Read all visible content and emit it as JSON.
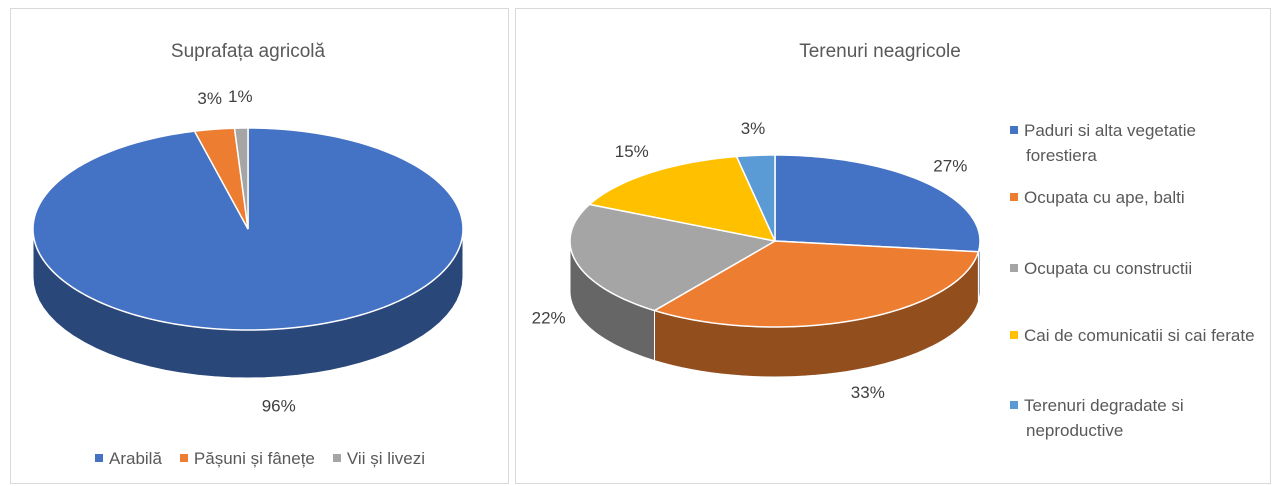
{
  "chart_data": [
    {
      "type": "pie",
      "title": "Suprafața agricolă",
      "categories": [
        "Arabilă",
        "Pășuni și fânețe",
        "Vii și livezi"
      ],
      "values": [
        96,
        3,
        1
      ],
      "value_labels": [
        "96%",
        "3%",
        "1%"
      ],
      "colors": [
        "#4472c4",
        "#ed7d31",
        "#a5a5a5"
      ],
      "legend": "bottom"
    },
    {
      "type": "pie",
      "title": "Terenuri neagricole",
      "categories": [
        "Paduri si alta vegetatie forestiera",
        "Ocupata cu ape, balti",
        "Ocupata cu constructii",
        "Cai de comunicatii si cai ferate",
        "Terenuri degradate si neproductive"
      ],
      "values": [
        27,
        33,
        22,
        15,
        3
      ],
      "value_labels": [
        "27%",
        "33%",
        "22%",
        "15%",
        "3%"
      ],
      "colors": [
        "#4472c4",
        "#ed7d31",
        "#a5a5a5",
        "#ffc000",
        "#5b9bd5"
      ],
      "legend": "right"
    }
  ]
}
